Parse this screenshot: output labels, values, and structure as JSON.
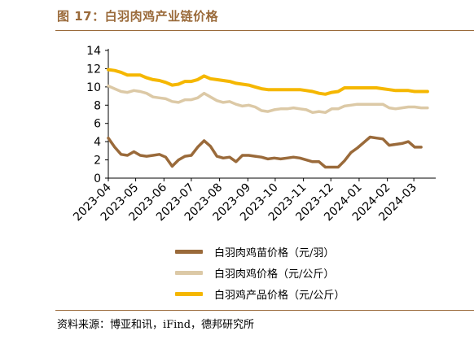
{
  "header": {
    "title": "图 17：白羽肉鸡产业链价格"
  },
  "footer": {
    "source": "资料来源：博亚和讯，iFind，德邦研究所"
  },
  "colors": {
    "brand": "#9a6a3a"
  },
  "chart_data": {
    "type": "line",
    "title": "",
    "xlabel": "",
    "ylabel": "",
    "ylim": [
      0,
      14
    ],
    "yticks": [
      "0",
      "2",
      "4",
      "6",
      "8",
      "10",
      "12",
      "14"
    ],
    "xlim": [
      "2023-04-01",
      "2024-03-25"
    ],
    "xticks": [
      "2023-04",
      "2023-05",
      "2023-06",
      "2023-07",
      "2023-08",
      "2023-09",
      "2023-10",
      "2023-11",
      "2023-12",
      "2024-01",
      "2024-02",
      "2024-03"
    ],
    "grid": false,
    "legend": "bottom",
    "series": [
      {
        "name": "白羽肉鸡苗价格（元/羽）",
        "color": "#9a6a3a",
        "points": [
          [
            "2023-04-01",
            4.4
          ],
          [
            "2023-04-08",
            3.4
          ],
          [
            "2023-04-15",
            2.6
          ],
          [
            "2023-04-22",
            2.5
          ],
          [
            "2023-04-29",
            2.9
          ],
          [
            "2023-05-06",
            2.5
          ],
          [
            "2023-05-13",
            2.4
          ],
          [
            "2023-05-20",
            2.5
          ],
          [
            "2023-05-27",
            2.6
          ],
          [
            "2023-06-03",
            2.3
          ],
          [
            "2023-06-10",
            1.3
          ],
          [
            "2023-06-17",
            2.0
          ],
          [
            "2023-06-24",
            2.4
          ],
          [
            "2023-07-01",
            2.5
          ],
          [
            "2023-07-08",
            3.4
          ],
          [
            "2023-07-15",
            4.1
          ],
          [
            "2023-07-22",
            3.5
          ],
          [
            "2023-07-29",
            2.4
          ],
          [
            "2023-08-05",
            2.2
          ],
          [
            "2023-08-12",
            2.3
          ],
          [
            "2023-08-19",
            1.8
          ],
          [
            "2023-08-26",
            2.5
          ],
          [
            "2023-09-02",
            2.5
          ],
          [
            "2023-09-09",
            2.4
          ],
          [
            "2023-09-16",
            2.3
          ],
          [
            "2023-09-23",
            2.1
          ],
          [
            "2023-09-30",
            2.2
          ],
          [
            "2023-10-07",
            2.1
          ],
          [
            "2023-10-14",
            2.2
          ],
          [
            "2023-10-21",
            2.3
          ],
          [
            "2023-10-28",
            2.2
          ],
          [
            "2023-11-04",
            2.0
          ],
          [
            "2023-11-11",
            1.8
          ],
          [
            "2023-11-18",
            1.8
          ],
          [
            "2023-11-25",
            1.2
          ],
          [
            "2023-12-02",
            1.2
          ],
          [
            "2023-12-09",
            1.2
          ],
          [
            "2023-12-16",
            1.9
          ],
          [
            "2023-12-23",
            2.8
          ],
          [
            "2023-12-30",
            3.3
          ],
          [
            "2024-01-06",
            3.9
          ],
          [
            "2024-01-13",
            4.5
          ],
          [
            "2024-01-20",
            4.4
          ],
          [
            "2024-01-27",
            4.3
          ],
          [
            "2024-02-03",
            3.6
          ],
          [
            "2024-02-10",
            3.7
          ],
          [
            "2024-02-17",
            3.8
          ],
          [
            "2024-02-24",
            4.0
          ],
          [
            "2024-03-02",
            3.4
          ],
          [
            "2024-03-09",
            3.4
          ]
        ]
      },
      {
        "name": "白羽肉鸡价格（元/公斤）",
        "color": "#dcc9a6",
        "points": [
          [
            "2023-04-01",
            10.1
          ],
          [
            "2023-04-08",
            9.8
          ],
          [
            "2023-04-15",
            9.5
          ],
          [
            "2023-04-22",
            9.4
          ],
          [
            "2023-04-29",
            9.6
          ],
          [
            "2023-05-06",
            9.5
          ],
          [
            "2023-05-13",
            9.3
          ],
          [
            "2023-05-20",
            8.9
          ],
          [
            "2023-05-27",
            8.8
          ],
          [
            "2023-06-03",
            8.7
          ],
          [
            "2023-06-10",
            8.4
          ],
          [
            "2023-06-17",
            8.3
          ],
          [
            "2023-06-24",
            8.6
          ],
          [
            "2023-07-01",
            8.6
          ],
          [
            "2023-07-08",
            8.8
          ],
          [
            "2023-07-15",
            9.3
          ],
          [
            "2023-07-22",
            8.9
          ],
          [
            "2023-07-29",
            8.5
          ],
          [
            "2023-08-05",
            8.3
          ],
          [
            "2023-08-12",
            8.4
          ],
          [
            "2023-08-19",
            8.1
          ],
          [
            "2023-08-26",
            7.9
          ],
          [
            "2023-09-02",
            8.0
          ],
          [
            "2023-09-09",
            7.8
          ],
          [
            "2023-09-16",
            7.4
          ],
          [
            "2023-09-23",
            7.3
          ],
          [
            "2023-09-30",
            7.5
          ],
          [
            "2023-10-07",
            7.6
          ],
          [
            "2023-10-14",
            7.6
          ],
          [
            "2023-10-21",
            7.7
          ],
          [
            "2023-10-28",
            7.6
          ],
          [
            "2023-11-04",
            7.5
          ],
          [
            "2023-11-11",
            7.2
          ],
          [
            "2023-11-18",
            7.3
          ],
          [
            "2023-11-25",
            7.2
          ],
          [
            "2023-12-02",
            7.6
          ],
          [
            "2023-12-09",
            7.6
          ],
          [
            "2023-12-16",
            7.9
          ],
          [
            "2023-12-23",
            8.0
          ],
          [
            "2023-12-30",
            8.1
          ],
          [
            "2024-01-06",
            8.1
          ],
          [
            "2024-01-13",
            8.1
          ],
          [
            "2024-01-20",
            8.1
          ],
          [
            "2024-01-27",
            8.1
          ],
          [
            "2024-02-03",
            7.7
          ],
          [
            "2024-02-10",
            7.6
          ],
          [
            "2024-02-17",
            7.7
          ],
          [
            "2024-02-24",
            7.8
          ],
          [
            "2024-03-02",
            7.8
          ],
          [
            "2024-03-09",
            7.7
          ],
          [
            "2024-03-16",
            7.7
          ]
        ]
      },
      {
        "name": "白羽鸡产品价格（元/公斤）",
        "color": "#f5b700",
        "points": [
          [
            "2023-04-01",
            11.9
          ],
          [
            "2023-04-08",
            11.8
          ],
          [
            "2023-04-15",
            11.6
          ],
          [
            "2023-04-22",
            11.3
          ],
          [
            "2023-04-29",
            11.3
          ],
          [
            "2023-05-06",
            11.3
          ],
          [
            "2023-05-13",
            11.0
          ],
          [
            "2023-05-20",
            10.8
          ],
          [
            "2023-05-27",
            10.7
          ],
          [
            "2023-06-03",
            10.5
          ],
          [
            "2023-06-10",
            10.2
          ],
          [
            "2023-06-17",
            10.3
          ],
          [
            "2023-06-24",
            10.6
          ],
          [
            "2023-07-01",
            10.6
          ],
          [
            "2023-07-08",
            10.8
          ],
          [
            "2023-07-15",
            11.2
          ],
          [
            "2023-07-22",
            10.9
          ],
          [
            "2023-07-29",
            10.8
          ],
          [
            "2023-08-05",
            10.7
          ],
          [
            "2023-08-12",
            10.6
          ],
          [
            "2023-08-19",
            10.4
          ],
          [
            "2023-08-26",
            10.3
          ],
          [
            "2023-09-02",
            10.2
          ],
          [
            "2023-09-09",
            10.0
          ],
          [
            "2023-09-16",
            9.8
          ],
          [
            "2023-09-23",
            9.7
          ],
          [
            "2023-09-30",
            9.7
          ],
          [
            "2023-10-07",
            9.7
          ],
          [
            "2023-10-14",
            9.7
          ],
          [
            "2023-10-21",
            9.7
          ],
          [
            "2023-10-28",
            9.7
          ],
          [
            "2023-11-04",
            9.6
          ],
          [
            "2023-11-11",
            9.5
          ],
          [
            "2023-11-18",
            9.3
          ],
          [
            "2023-11-25",
            9.2
          ],
          [
            "2023-12-02",
            9.4
          ],
          [
            "2023-12-09",
            9.5
          ],
          [
            "2023-12-16",
            9.9
          ],
          [
            "2023-12-23",
            9.9
          ],
          [
            "2023-12-30",
            9.9
          ],
          [
            "2024-01-06",
            9.9
          ],
          [
            "2024-01-13",
            9.9
          ],
          [
            "2024-01-20",
            9.9
          ],
          [
            "2024-01-27",
            9.8
          ],
          [
            "2024-02-03",
            9.7
          ],
          [
            "2024-02-10",
            9.6
          ],
          [
            "2024-02-17",
            9.6
          ],
          [
            "2024-02-24",
            9.6
          ],
          [
            "2024-03-02",
            9.5
          ],
          [
            "2024-03-09",
            9.5
          ],
          [
            "2024-03-16",
            9.5
          ]
        ]
      }
    ]
  }
}
